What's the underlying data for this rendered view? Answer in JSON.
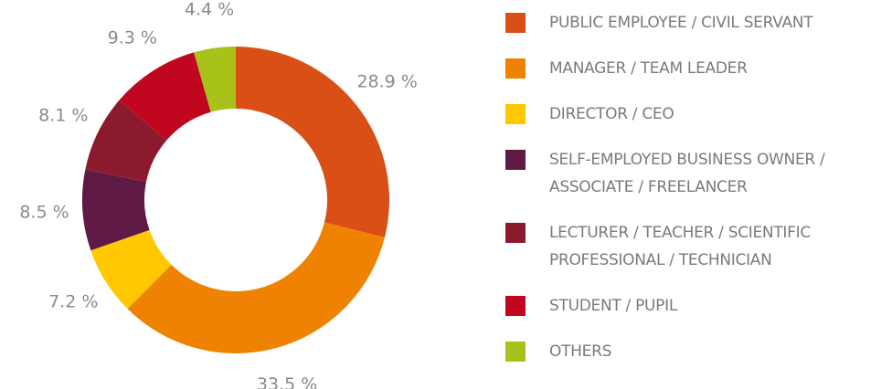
{
  "chart_data": {
    "type": "donut",
    "categories": [
      "PUBLIC EMPLOYEE / CIVIL SERVANT",
      "MANAGER / TEAM LEADER",
      "DIRECTOR / CEO",
      "SELF-EMPLOYED BUSINESS OWNER /\nASSOCIATE / FREELANCER",
      "LECTURER / TEACHER / SCIENTIFIC\nPROFESSIONAL / TECHNICIAN",
      "STUDENT / PUPIL",
      "OTHERS"
    ],
    "values": [
      28.9,
      33.5,
      7.2,
      8.5,
      8.1,
      9.3,
      4.4
    ],
    "value_labels": [
      "28.9 %",
      "33.5 %",
      "7.2 %",
      "8.5 %",
      "8.1 %",
      "9.3 %",
      "4.4 %"
    ],
    "colors": [
      "#d94f16",
      "#ef8200",
      "#ffc800",
      "#5e1a45",
      "#8c1a2e",
      "#c0071f",
      "#a8c219"
    ],
    "legend": "right"
  }
}
